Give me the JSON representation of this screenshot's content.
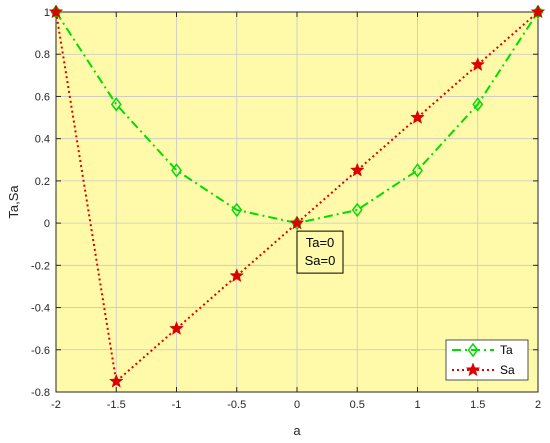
{
  "chart_data": {
    "type": "line",
    "xlabel": "a",
    "ylabel": "Ta,Sa",
    "xlim": [
      -2,
      2
    ],
    "ylim": [
      -0.8,
      1
    ],
    "x_ticks": [
      "-2",
      "-1.5",
      "-1",
      "-0.5",
      "0",
      "0.5",
      "1",
      "1.5",
      "2"
    ],
    "y_ticks": [
      "-0.8",
      "-0.6",
      "-0.4",
      "-0.2",
      "0",
      "0.2",
      "0.4",
      "0.6",
      "0.8",
      "1"
    ],
    "x": [
      -2,
      -1.5,
      -1,
      -0.5,
      0,
      0.5,
      1,
      1.5,
      2
    ],
    "series": [
      {
        "name": "Ta",
        "values": [
          1,
          0.5625,
          0.25,
          0.0625,
          0,
          0.0625,
          0.25,
          0.5625,
          1
        ],
        "color": "#00dd00",
        "marker": "diamond",
        "line_style": "dash-dot"
      },
      {
        "name": "Sa",
        "values": [
          1,
          -0.75,
          -0.5,
          -0.25,
          0,
          0.25,
          0.5,
          0.75,
          1
        ],
        "color": "#dd0000",
        "marker": "star",
        "line_style": "dotted"
      }
    ],
    "annotation": {
      "lines": [
        "Ta=0",
        "Sa=0"
      ],
      "x": 0,
      "y": 0
    },
    "grid": true,
    "background": "#fffaaa",
    "legend_position": "bottom-right"
  }
}
